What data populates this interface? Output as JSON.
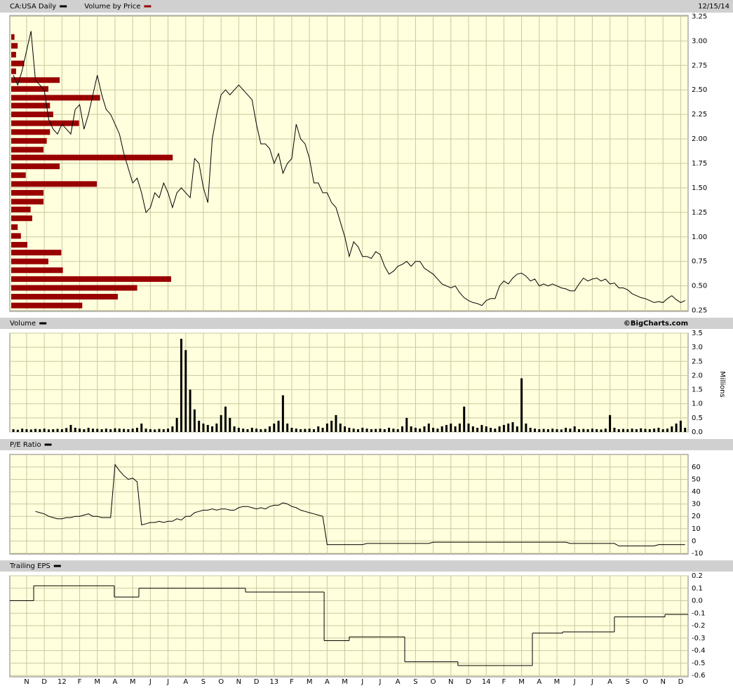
{
  "chart_data": {
    "type": "stock",
    "date": "12/15/14",
    "credit": "©BigCharts.com",
    "grid": true,
    "x": [
      -0.75,
      -0.5,
      -0.25,
      0,
      0.25,
      0.5,
      0.75,
      1,
      1.25,
      1.5,
      1.75,
      2,
      2.25,
      2.5,
      2.75,
      3,
      3.25,
      3.5,
      3.75,
      4,
      4.25,
      4.5,
      4.75,
      5,
      5.25,
      5.5,
      5.75,
      6,
      6.25,
      6.5,
      6.75,
      7,
      7.25,
      7.5,
      7.75,
      8,
      8.25,
      8.5,
      8.75,
      9,
      9.25,
      9.5,
      9.75,
      10,
      10.25,
      10.5,
      10.75,
      11,
      11.25,
      11.5,
      11.75,
      12,
      12.25,
      12.5,
      12.75,
      13,
      13.25,
      13.5,
      13.75,
      14,
      14.25,
      14.5,
      14.75,
      15,
      15.25,
      15.5,
      15.75,
      16,
      16.25,
      16.5,
      16.75,
      17,
      17.25,
      17.5,
      17.75,
      18,
      18.25,
      18.5,
      18.75,
      19,
      19.25,
      19.5,
      19.75,
      20,
      20.25,
      20.5,
      20.75,
      21,
      21.25,
      21.5,
      21.75,
      22,
      22.25,
      22.5,
      22.75,
      23,
      23.25,
      23.5,
      23.75,
      24,
      24.25,
      24.5,
      24.75,
      25,
      25.25,
      25.5,
      25.75,
      26,
      26.25,
      26.5,
      26.75,
      27,
      27.25,
      27.5,
      27.75,
      28,
      28.25,
      28.5,
      28.75,
      29,
      29.25,
      29.5,
      29.75,
      30,
      30.25,
      30.5,
      30.75,
      31,
      31.25,
      31.5,
      31.75,
      32,
      32.25,
      32.5,
      32.75,
      33,
      33.25,
      33.5,
      33.75,
      34,
      34.25,
      34.5,
      34.75,
      35,
      35.25,
      35.5,
      35.75,
      36,
      36.25,
      36.5,
      36.75,
      37,
      37.25
    ],
    "xlim": [
      -0.95,
      37.42
    ],
    "xticks": [
      {
        "value": 0,
        "label": "N"
      },
      {
        "value": 1,
        "label": "D"
      },
      {
        "value": 2,
        "label": "12"
      },
      {
        "value": 3,
        "label": "F"
      },
      {
        "value": 4,
        "label": "M"
      },
      {
        "value": 5,
        "label": "A"
      },
      {
        "value": 6,
        "label": "M"
      },
      {
        "value": 7,
        "label": "J"
      },
      {
        "value": 8,
        "label": "J"
      },
      {
        "value": 9,
        "label": "A"
      },
      {
        "value": 10,
        "label": "S"
      },
      {
        "value": 11,
        "label": "O"
      },
      {
        "value": 12,
        "label": "N"
      },
      {
        "value": 13,
        "label": "D"
      },
      {
        "value": 14,
        "label": "13"
      },
      {
        "value": 15,
        "label": "F"
      },
      {
        "value": 16,
        "label": "M"
      },
      {
        "value": 17,
        "label": "A"
      },
      {
        "value": 18,
        "label": "M"
      },
      {
        "value": 19,
        "label": "J"
      },
      {
        "value": 20,
        "label": "J"
      },
      {
        "value": 21,
        "label": "A"
      },
      {
        "value": 22,
        "label": "S"
      },
      {
        "value": 23,
        "label": "O"
      },
      {
        "value": 24,
        "label": "N"
      },
      {
        "value": 25,
        "label": "D"
      },
      {
        "value": 26,
        "label": "14"
      },
      {
        "value": 27,
        "label": "F"
      },
      {
        "value": 28,
        "label": "M"
      },
      {
        "value": 29,
        "label": "A"
      },
      {
        "value": 30,
        "label": "M"
      },
      {
        "value": 31,
        "label": "J"
      },
      {
        "value": 32,
        "label": "J"
      },
      {
        "value": 33,
        "label": "A"
      },
      {
        "value": 34,
        "label": "S"
      },
      {
        "value": 35,
        "label": "O"
      },
      {
        "value": 36,
        "label": "N"
      },
      {
        "value": 37,
        "label": "D"
      }
    ],
    "panels": [
      {
        "type": "line",
        "name": "CA:USA Daily",
        "color": "#000000",
        "values": [
          2.65,
          2.55,
          2.7,
          2.9,
          3.1,
          2.6,
          2.55,
          2.5,
          2.2,
          2.1,
          2.05,
          2.15,
          2.1,
          2.05,
          2.3,
          2.35,
          2.1,
          2.25,
          2.45,
          2.65,
          2.45,
          2.3,
          2.25,
          2.15,
          2.05,
          1.85,
          1.7,
          1.55,
          1.6,
          1.45,
          1.25,
          1.3,
          1.45,
          1.4,
          1.55,
          1.45,
          1.3,
          1.45,
          1.5,
          1.45,
          1.4,
          1.8,
          1.75,
          1.5,
          1.35,
          2.0,
          2.25,
          2.45,
          2.5,
          2.45,
          2.5,
          2.55,
          2.5,
          2.45,
          2.4,
          2.15,
          1.95,
          1.95,
          1.9,
          1.75,
          1.85,
          1.65,
          1.75,
          1.8,
          2.15,
          2.0,
          1.95,
          1.8,
          1.55,
          1.55,
          1.45,
          1.45,
          1.35,
          1.3,
          1.15,
          1.0,
          0.8,
          0.95,
          0.9,
          0.8,
          0.8,
          0.78,
          0.85,
          0.82,
          0.7,
          0.62,
          0.65,
          0.7,
          0.72,
          0.75,
          0.7,
          0.75,
          0.75,
          0.68,
          0.65,
          0.62,
          0.57,
          0.52,
          0.5,
          0.48,
          0.5,
          0.43,
          0.38,
          0.35,
          0.33,
          0.32,
          0.3,
          0.35,
          0.37,
          0.37,
          0.5,
          0.55,
          0.52,
          0.58,
          0.62,
          0.63,
          0.6,
          0.55,
          0.57,
          0.5,
          0.52,
          0.5,
          0.52,
          0.5,
          0.48,
          0.47,
          0.45,
          0.45,
          0.52,
          0.58,
          0.55,
          0.57,
          0.58,
          0.55,
          0.57,
          0.52,
          0.53,
          0.48,
          0.48,
          0.46,
          0.42,
          0.4,
          0.38,
          0.37,
          0.35,
          0.33,
          0.34,
          0.33,
          0.37,
          0.4,
          0.36,
          0.33,
          0.35
        ],
        "ylim": [
          0.24,
          3.26
        ],
        "yticks": [
          3.25,
          {
            "value": 3,
            "label": "3.00"
          },
          2.75,
          {
            "value": 2.5,
            "label": "2.50"
          },
          2.25,
          {
            "value": 2,
            "label": "2.00"
          },
          1.75,
          {
            "value": 1.5,
            "label": "1.50"
          },
          1.25,
          {
            "value": 1,
            "label": "1.00"
          },
          0.75,
          {
            "value": 0.5,
            "label": "0.50"
          },
          0.25
        ],
        "overlay": {
          "type": "hbar",
          "name": "Volume by Price",
          "color": "#990000",
          "prices": [
            3.04,
            2.95,
            2.86,
            2.77,
            2.69,
            2.6,
            2.51,
            2.42,
            2.34,
            2.25,
            2.16,
            2.07,
            1.98,
            1.89,
            1.81,
            1.72,
            1.63,
            1.54,
            1.45,
            1.36,
            1.28,
            1.19,
            1.1,
            1.01,
            0.92,
            0.84,
            0.75,
            0.66,
            0.57,
            0.48,
            0.39,
            0.3
          ],
          "values": [
            2,
            4,
            3,
            8,
            3,
            30,
            23,
            55,
            24,
            26,
            42,
            24,
            22,
            20,
            100,
            30,
            9,
            53,
            20,
            20,
            12,
            13,
            4,
            6,
            10,
            31,
            23,
            32,
            99,
            78,
            66,
            44
          ],
          "xlim": [
            0,
            420
          ]
        }
      },
      {
        "type": "bar",
        "name": "Volume",
        "color": "#000000",
        "axis_label": "Millions",
        "values": [
          0.1,
          0.08,
          0.12,
          0.1,
          0.09,
          0.11,
          0.1,
          0.12,
          0.09,
          0.1,
          0.11,
          0.1,
          0.14,
          0.25,
          0.15,
          0.12,
          0.1,
          0.15,
          0.12,
          0.11,
          0.1,
          0.12,
          0.1,
          0.13,
          0.12,
          0.11,
          0.1,
          0.12,
          0.15,
          0.3,
          0.12,
          0.1,
          0.09,
          0.11,
          0.1,
          0.12,
          0.2,
          0.5,
          3.3,
          2.9,
          1.5,
          0.8,
          0.4,
          0.3,
          0.25,
          0.2,
          0.3,
          0.6,
          0.9,
          0.5,
          0.2,
          0.15,
          0.12,
          0.1,
          0.15,
          0.12,
          0.1,
          0.11,
          0.2,
          0.3,
          0.4,
          1.3,
          0.3,
          0.15,
          0.12,
          0.1,
          0.11,
          0.12,
          0.1,
          0.2,
          0.15,
          0.3,
          0.4,
          0.6,
          0.3,
          0.2,
          0.15,
          0.12,
          0.1,
          0.15,
          0.12,
          0.1,
          0.11,
          0.12,
          0.1,
          0.15,
          0.12,
          0.1,
          0.2,
          0.5,
          0.2,
          0.15,
          0.12,
          0.2,
          0.3,
          0.15,
          0.12,
          0.2,
          0.25,
          0.3,
          0.2,
          0.3,
          0.9,
          0.3,
          0.2,
          0.15,
          0.25,
          0.2,
          0.15,
          0.12,
          0.2,
          0.25,
          0.3,
          0.35,
          0.2,
          1.9,
          0.3,
          0.15,
          0.12,
          0.1,
          0.11,
          0.1,
          0.12,
          0.1,
          0.09,
          0.15,
          0.12,
          0.2,
          0.1,
          0.11,
          0.1,
          0.12,
          0.1,
          0.09,
          0.12,
          0.6,
          0.15,
          0.1,
          0.11,
          0.1,
          0.12,
          0.1,
          0.13,
          0.11,
          0.1,
          0.12,
          0.15,
          0.1,
          0.12,
          0.2,
          0.3,
          0.4,
          0.15
        ],
        "ylim": [
          0,
          3.5
        ],
        "yticks": [
          {
            "value": 0,
            "label": "0.0"
          },
          0.5,
          {
            "value": 1,
            "label": "1.0"
          },
          1.5,
          {
            "value": 2,
            "label": "2.0"
          },
          2.5,
          {
            "value": 3,
            "label": "3.0"
          },
          3.5
        ]
      },
      {
        "type": "line",
        "name": "P/E Ratio",
        "color": "#000000",
        "values": [
          null,
          null,
          null,
          null,
          null,
          24,
          23,
          22,
          20,
          19,
          18,
          18,
          19,
          19,
          20,
          20,
          21,
          22,
          20,
          20,
          19,
          19,
          19,
          62,
          57,
          53,
          50,
          51,
          48,
          13,
          14,
          15,
          15,
          16,
          15,
          16,
          16,
          18,
          17,
          20,
          20,
          23,
          24,
          25,
          25,
          26,
          25,
          26,
          26,
          25,
          25,
          27,
          28,
          28,
          27,
          26,
          27,
          26,
          28,
          29,
          29,
          31,
          30,
          28,
          27,
          25,
          24,
          23,
          22,
          21,
          20,
          -3,
          -3,
          -3,
          -3,
          -3,
          -3,
          -3,
          -3,
          -3,
          -2,
          -2,
          -2,
          -2,
          -2,
          -2,
          -2,
          -2,
          -2,
          -2,
          -2,
          -2,
          -2,
          -2,
          -2,
          -1,
          -1,
          -1,
          -1,
          -1,
          -1,
          -1,
          -1,
          -1,
          -1,
          -1,
          -1,
          -1,
          -1,
          -1,
          -1,
          -1,
          -1,
          -1,
          -1,
          -1,
          -1,
          -1,
          -1,
          -1,
          -1,
          -1,
          -1,
          -1,
          -1,
          -1,
          -2,
          -2,
          -2,
          -2,
          -2,
          -2,
          -2,
          -2,
          -2,
          -2,
          -2,
          -4,
          -4,
          -4,
          -4,
          -4,
          -4,
          -4,
          -4,
          -4,
          -3,
          -3,
          -3,
          -3,
          -3,
          -3,
          -3
        ],
        "ylim": [
          -10.6,
          70.2
        ],
        "yticks": [
          -10,
          0,
          10,
          20,
          30,
          40,
          50,
          60
        ]
      },
      {
        "type": "step",
        "name": "Trailing EPS",
        "color": "#000000",
        "x": [
          -0.95,
          0.4,
          4.96,
          6.35,
          12.38,
          16.83,
          18.25,
          21.39,
          24.4,
          28.61,
          30.32,
          33.25,
          36.11
        ],
        "values": [
          0,
          0.12,
          0.03,
          0.1,
          0.07,
          -0.32,
          -0.29,
          -0.49,
          -0.52,
          -0.26,
          -0.25,
          -0.13,
          -0.11
        ],
        "ylim": [
          -0.61,
          0.2
        ],
        "yticks": [
          0.2,
          0.1,
          {
            "value": 0,
            "label": "0.0"
          },
          -0.1,
          -0.2,
          -0.3,
          -0.4,
          -0.5,
          -0.6
        ]
      }
    ]
  }
}
